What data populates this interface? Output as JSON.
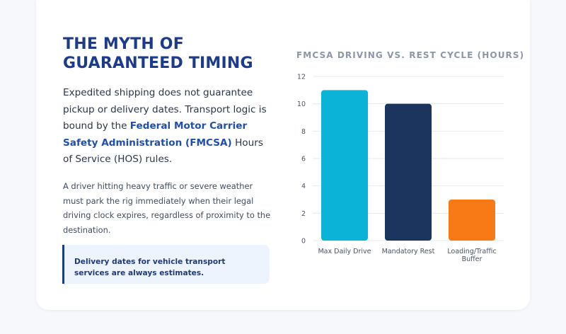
{
  "heading": "THE MYTH OF GUARANTEED TIMING",
  "intro": {
    "part1": "Expedited shipping does not guarantee pickup or delivery dates. Transport logic is bound by the ",
    "highlight": "Federal Motor Carrier Safety Administration (FMCSA)",
    "part2": " Hours of Service (HOS) rules."
  },
  "detail": "A driver hitting heavy traffic or severe weather must park the rig immediately when their legal driving clock expires, regardless of proximity to the destination.",
  "callout": "Delivery dates for vehicle transport services are always estimates.",
  "colors": {
    "heading": "#1d3b8b",
    "highlight": "#1d4fb0",
    "drive": "#0bb4d6",
    "rest": "#1b355f",
    "buffer": "#f77a17"
  },
  "chart_data": {
    "type": "bar",
    "title": "FMCSA DRIVING VS. REST CYCLE (HOURS)",
    "categories": [
      "Max Daily Drive",
      "Mandatory Rest",
      "Loading/Traffic Buffer"
    ],
    "category_lines": [
      [
        "Max Daily Drive"
      ],
      [
        "Mandatory Rest"
      ],
      [
        "Loading/Traffic",
        "Buffer"
      ]
    ],
    "values": [
      11,
      10,
      3
    ],
    "bar_colors": [
      "#0bb4d6",
      "#1b355f",
      "#f77a17"
    ],
    "ylim": [
      0,
      12
    ],
    "yticks": [
      0,
      2,
      4,
      6,
      8,
      10,
      12
    ],
    "xlabel": "",
    "ylabel": "",
    "grid": true,
    "legend": "none"
  }
}
